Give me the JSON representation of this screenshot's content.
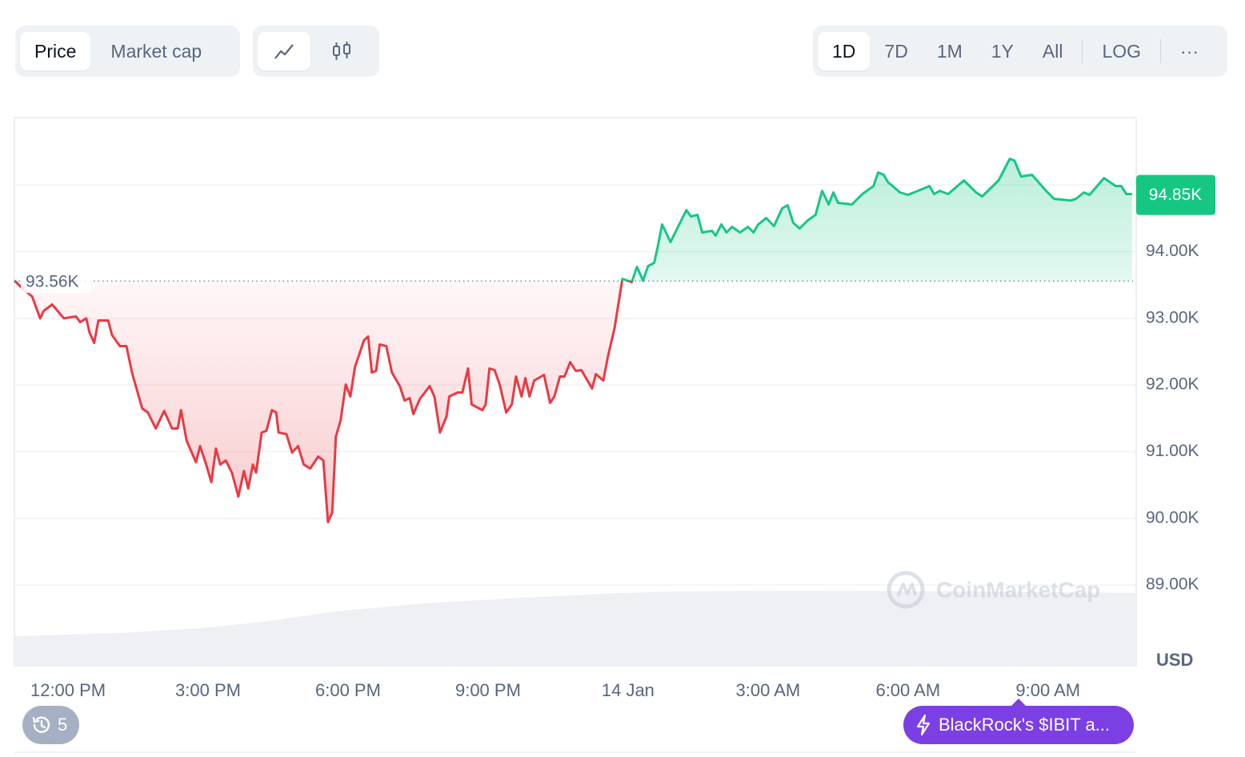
{
  "toolbar": {
    "views": [
      "Price",
      "Market cap"
    ],
    "ranges": [
      "1D",
      "7D",
      "1M",
      "1Y",
      "All",
      "LOG"
    ],
    "more": "···"
  },
  "history_count": 5,
  "news": "BlackRock's $IBIT a...",
  "watermark": "CoinMarketCap",
  "chart_data": {
    "type": "line",
    "up_color": "#16c784",
    "down_color": "#ea3943",
    "grid": true,
    "y_unit": "USD",
    "xlim": [
      10.85,
      34.89
    ],
    "xticks": [
      {
        "value": 12,
        "label": "12:00 PM"
      },
      {
        "value": 15,
        "label": "3:00 PM"
      },
      {
        "value": 18,
        "label": "6:00 PM"
      },
      {
        "value": 21,
        "label": "9:00 PM"
      },
      {
        "value": 24,
        "label": "14 Jan"
      },
      {
        "value": 27,
        "label": "3:00 AM"
      },
      {
        "value": 30,
        "label": "6:00 AM"
      },
      {
        "value": 33,
        "label": "9:00 AM"
      }
    ],
    "ylim": [
      87790,
      96010
    ],
    "yticks": [
      {
        "value": 89000,
        "label": "89.00K"
      },
      {
        "value": 90000,
        "label": "90.00K"
      },
      {
        "value": 91000,
        "label": "91.00K"
      },
      {
        "value": 92000,
        "label": "92.00K"
      },
      {
        "value": 93000,
        "label": "93.00K"
      },
      {
        "value": 94000,
        "label": "94.00K"
      },
      {
        "value": 95000,
        "label": null
      }
    ],
    "reference": {
      "value": 93560,
      "label": "93.56K"
    },
    "last_price": {
      "value": 94850,
      "label": "94.85K"
    },
    "x": [
      10.85,
      11.06,
      11.23,
      11.4,
      11.48,
      11.66,
      11.91,
      12.17,
      12.26,
      12.39,
      12.46,
      12.56,
      12.65,
      12.86,
      12.94,
      13.11,
      13.25,
      13.37,
      13.49,
      13.59,
      13.71,
      13.88,
      14.06,
      14.23,
      14.35,
      14.42,
      14.54,
      14.74,
      14.83,
      14.96,
      15.07,
      15.17,
      15.26,
      15.38,
      15.51,
      15.65,
      15.77,
      15.86,
      15.96,
      16.03,
      16.15,
      16.25,
      16.37,
      16.46,
      16.51,
      16.68,
      16.8,
      16.93,
      17.05,
      17.19,
      17.36,
      17.47,
      17.57,
      17.66,
      17.74,
      17.84,
      17.95,
      18.05,
      18.15,
      18.34,
      18.43,
      18.51,
      18.6,
      18.68,
      18.82,
      18.94,
      19.11,
      19.21,
      19.32,
      19.4,
      19.54,
      19.75,
      19.85,
      19.97,
      20.11,
      20.17,
      20.35,
      20.45,
      20.57,
      20.65,
      20.88,
      20.95,
      21.03,
      21.14,
      21.25,
      21.39,
      21.51,
      21.6,
      21.72,
      21.8,
      21.89,
      21.99,
      22.2,
      22.33,
      22.42,
      22.54,
      22.64,
      22.76,
      22.88,
      23.0,
      23.23,
      23.31,
      23.47,
      23.57,
      23.71,
      23.88,
      24.08,
      24.19,
      24.32,
      24.43,
      24.56,
      24.63,
      24.73,
      24.91,
      25.08,
      25.25,
      25.35,
      25.49,
      25.59,
      25.8,
      25.88,
      26.0,
      26.11,
      26.23,
      26.4,
      26.57,
      26.69,
      26.79,
      26.96,
      27.13,
      27.3,
      27.42,
      27.54,
      27.68,
      27.85,
      28.02,
      28.16,
      28.3,
      28.4,
      28.5,
      28.8,
      29.02,
      29.26,
      29.36,
      29.48,
      29.57,
      29.83,
      30.0,
      30.34,
      30.46,
      30.56,
      30.68,
      30.86,
      31.2,
      31.46,
      31.59,
      31.94,
      32.18,
      32.28,
      32.42,
      32.66,
      32.96,
      33.13,
      33.48,
      33.6,
      33.77,
      33.89,
      34.2,
      34.45,
      34.57,
      34.68,
      34.8
    ],
    "values": [
      93568,
      93424,
      93328,
      93000,
      93112,
      93208,
      93000,
      93028,
      92944,
      93000,
      92788,
      92632,
      92968,
      92968,
      92752,
      92584,
      92584,
      92188,
      91888,
      91648,
      91588,
      91348,
      91612,
      91348,
      91348,
      91624,
      91168,
      90844,
      91084,
      90808,
      90544,
      91048,
      90808,
      90868,
      90688,
      90328,
      90712,
      90448,
      90808,
      90688,
      91288,
      91312,
      91624,
      91588,
      91288,
      91264,
      90988,
      91084,
      90808,
      90748,
      90928,
      90868,
      89944,
      90088,
      91228,
      91468,
      92008,
      91828,
      92272,
      92668,
      92728,
      92188,
      92212,
      92608,
      92584,
      92188,
      91984,
      91768,
      91804,
      91564,
      91792,
      91984,
      91828,
      91288,
      91528,
      91828,
      91888,
      91888,
      92248,
      91708,
      91624,
      91708,
      92248,
      92224,
      92008,
      91588,
      91708,
      92128,
      91828,
      92104,
      91828,
      92068,
      92152,
      91732,
      91828,
      92128,
      92128,
      92344,
      92212,
      92224,
      91948,
      92164,
      92068,
      92428,
      92848,
      93592,
      93544,
      93772,
      93568,
      93784,
      93832,
      94048,
      94408,
      94144,
      94384,
      94624,
      94528,
      94552,
      94288,
      94312,
      94240,
      94408,
      94288,
      94372,
      94288,
      94372,
      94288,
      94408,
      94504,
      94384,
      94648,
      94696,
      94432,
      94348,
      94468,
      94552,
      94912,
      94708,
      94888,
      94732,
      94708,
      94864,
      94984,
      95188,
      95152,
      95044,
      94888,
      94852,
      94948,
      94984,
      94864,
      94912,
      94864,
      95068,
      94888,
      94828,
      95068,
      95392,
      95368,
      95128,
      95152,
      94912,
      94792,
      94768,
      94792,
      94888,
      94852,
      95104,
      94984,
      94984,
      94864,
      94864
    ]
  }
}
